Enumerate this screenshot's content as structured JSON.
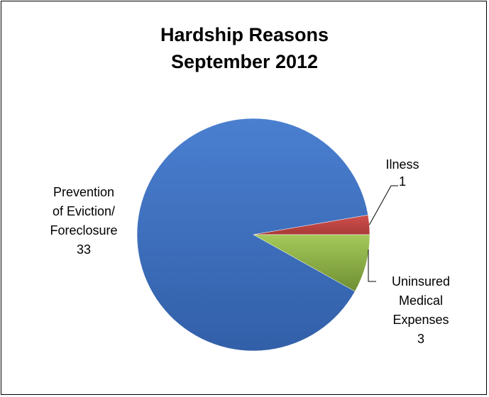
{
  "chart_data": {
    "type": "pie",
    "title": [
      "Hardship Reasons",
      "September 2012"
    ],
    "categories": [
      "Prevention of Eviction/ Foreclosure",
      "Ilness",
      "Uninsured Medical Expenses"
    ],
    "values": [
      33,
      1,
      3
    ],
    "colors": [
      "#4472c4",
      "#c0504d",
      "#9bbb59"
    ],
    "labels": [
      {
        "lines": [
          "Prevention",
          "of Eviction/",
          "Foreclosure"
        ],
        "value": "33"
      },
      {
        "lines": [
          "Ilness"
        ],
        "value": "1"
      },
      {
        "lines": [
          "Uninsured",
          "Medical",
          "Expenses"
        ],
        "value": "3"
      }
    ],
    "legend": "none"
  }
}
